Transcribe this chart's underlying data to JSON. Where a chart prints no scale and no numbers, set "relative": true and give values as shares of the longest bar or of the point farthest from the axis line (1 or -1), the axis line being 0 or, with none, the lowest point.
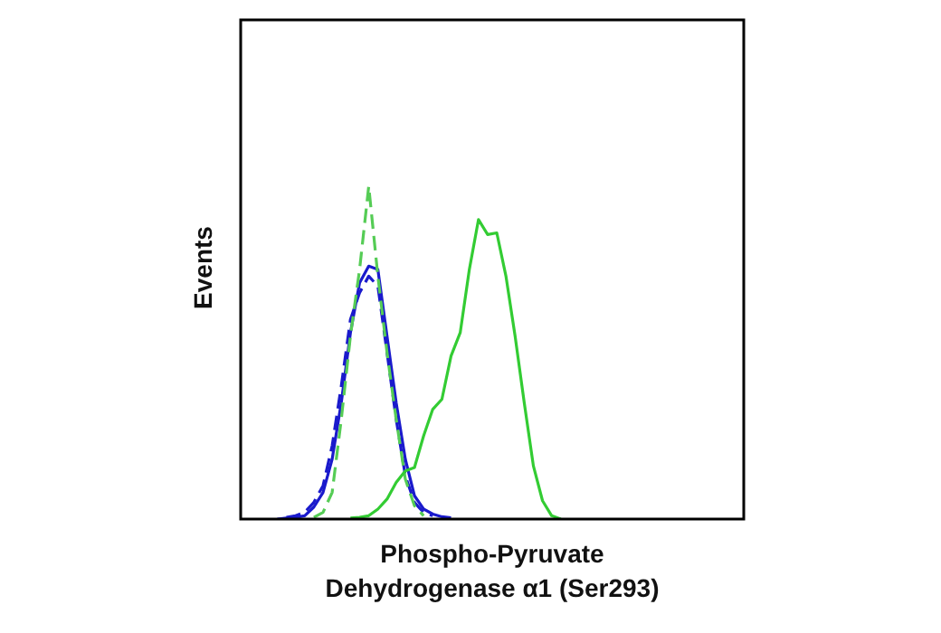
{
  "chart_data": {
    "type": "line",
    "relative": true,
    "xlabel": "Phospho-Pyruvate Dehydrogenase α1 (Ser293)",
    "ylabel": "Events",
    "marker": "none",
    "categories": [
      null,
      null,
      null,
      null,
      null,
      null,
      null,
      null,
      null,
      null,
      null,
      null,
      null,
      null,
      null,
      null,
      null,
      null,
      null,
      null,
      null,
      null,
      null,
      null,
      null,
      null,
      null,
      null,
      null,
      null,
      null,
      null,
      null,
      null,
      null,
      null,
      null,
      null,
      null,
      null,
      null,
      null,
      null,
      null,
      null,
      null,
      null,
      null,
      null,
      null,
      null,
      null,
      null,
      null,
      null,
      null
    ],
    "series": [
      {
        "color": "#33cc33",
        "line_style": "solid",
        "values": [
          null,
          null,
          null,
          null,
          null,
          null,
          null,
          null,
          null,
          null,
          null,
          null,
          0.003,
          0.005,
          0.01,
          0.03,
          0.06,
          0.11,
          0.145,
          0.155,
          0.25,
          0.33,
          0.36,
          0.49,
          0.56,
          0.75,
          0.9,
          0.855,
          0.86,
          0.73,
          0.55,
          0.35,
          0.16,
          0.055,
          0.01,
          0,
          null,
          null,
          null,
          null,
          null,
          null,
          null,
          null,
          null,
          null,
          null,
          null,
          null,
          null,
          null,
          null,
          null,
          null,
          null,
          null
        ]
      },
      {
        "color": "#55cc55",
        "line_style": "dashed",
        "values": [
          null,
          null,
          null,
          null,
          null,
          null,
          null,
          null,
          0.005,
          0.02,
          0.08,
          0.3,
          0.55,
          0.75,
          1,
          0.73,
          0.5,
          0.3,
          0.12,
          0.04,
          0.01,
          null,
          null,
          null,
          null,
          null,
          null,
          null,
          null,
          null,
          null,
          null,
          null,
          null,
          null,
          null,
          null,
          null,
          null,
          null,
          null,
          null,
          null,
          null,
          null,
          null,
          null,
          null,
          null,
          null,
          null,
          null,
          null,
          null,
          null,
          null
        ]
      },
      {
        "color": "#1a1acc",
        "line_style": "solid",
        "values": [
          null,
          null,
          null,
          null,
          0,
          0.003,
          0.005,
          0.01,
          0.036,
          0.08,
          0.18,
          0.35,
          0.56,
          0.71,
          0.76,
          0.75,
          0.55,
          0.35,
          0.18,
          0.07,
          0.03,
          0.015,
          0.007,
          0.004,
          null,
          null,
          null,
          null,
          null,
          null,
          null,
          null,
          null,
          null,
          null,
          null,
          null,
          null,
          null,
          null,
          null,
          null,
          null,
          null,
          null,
          null,
          null,
          null,
          null,
          null,
          null,
          null,
          null,
          null,
          null,
          null
        ]
      },
      {
        "color": "#1a1acc",
        "line_style": "dashed",
        "values": [
          null,
          null,
          null,
          null,
          null,
          0.005,
          0.01,
          0.02,
          0.05,
          0.1,
          0.22,
          0.4,
          0.6,
          0.68,
          0.73,
          0.7,
          0.5,
          0.3,
          0.13,
          0.05,
          0.02,
          0.01,
          null,
          null,
          null,
          null,
          null,
          null,
          null,
          null,
          null,
          null,
          null,
          null,
          null,
          null,
          null,
          null,
          null,
          null,
          null,
          null,
          null,
          null,
          null,
          null,
          null,
          null,
          null,
          null,
          null,
          null,
          null,
          null,
          null,
          null
        ]
      }
    ]
  }
}
